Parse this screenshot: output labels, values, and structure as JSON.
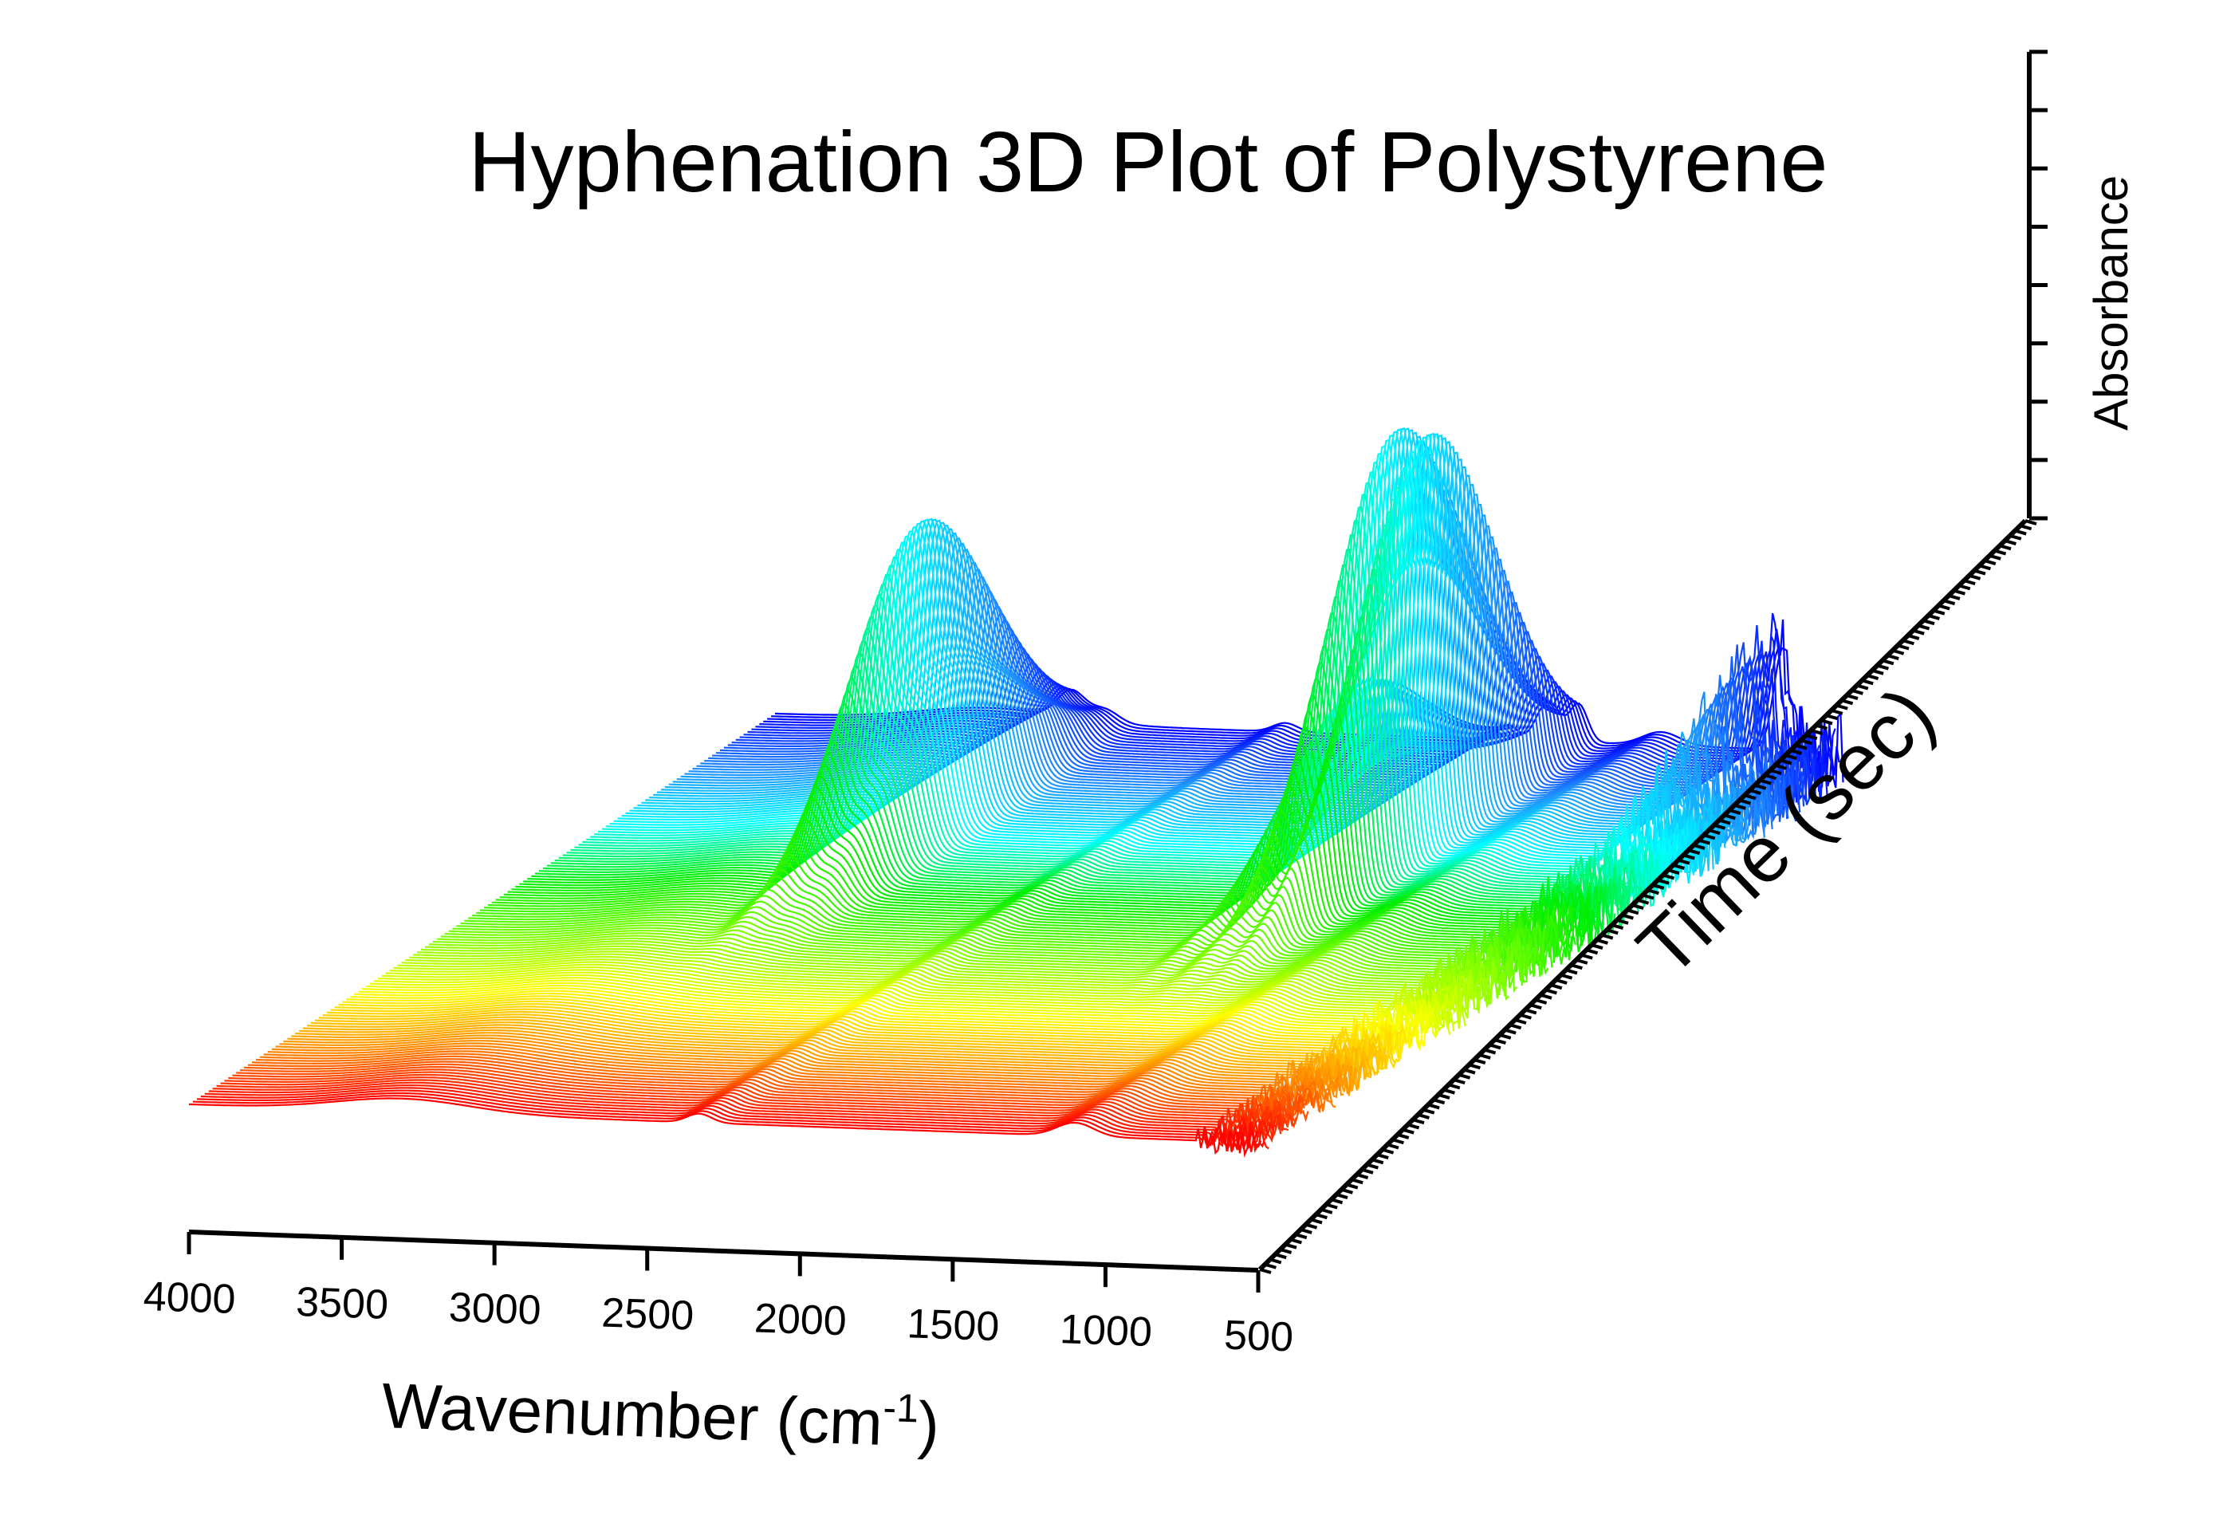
{
  "chart_data": {
    "type": "3d-waterfall",
    "title": "Hyphenation 3D Plot of Polystyrene",
    "x_axis": {
      "label": "Wavenumber (cm",
      "label_superscript": "-1",
      "label_suffix": ")",
      "range": [
        4000,
        500
      ],
      "tick_labels": [
        "4000",
        "3500",
        "3000",
        "2500",
        "2000",
        "1500",
        "1000",
        "500"
      ],
      "tick_values": [
        4000,
        3500,
        3000,
        2500,
        2000,
        1500,
        1000,
        500
      ]
    },
    "y_axis": {
      "label": "Time (sec)"
    },
    "z_axis": {
      "label": "Absorbance",
      "tick_count": 9
    },
    "grid": false,
    "colormap": [
      "#ff0000",
      "#ff8c00",
      "#ffff00",
      "#7fff00",
      "#00ee00",
      "#00ffff",
      "#1e90ff",
      "#0000ff"
    ],
    "spectrum_count": 150,
    "peaks": [
      {
        "wavenumber": 3030,
        "time_fraction": 0.74,
        "relative_height": 0.65
      },
      {
        "wavenumber": 2920,
        "time_fraction": 0.74,
        "relative_height": 0.3
      },
      {
        "wavenumber": 1600,
        "time_fraction": 0.74,
        "relative_height": 0.35
      },
      {
        "wavenumber": 1490,
        "time_fraction": 0.74,
        "relative_height": 0.55
      },
      {
        "wavenumber": 1450,
        "time_fraction": 0.74,
        "relative_height": 0.6
      },
      {
        "wavenumber": 1370,
        "time_fraction": 0.74,
        "relative_height": 0.9
      },
      {
        "wavenumber": 700,
        "time_fraction": 0.95,
        "relative_height": 0.25
      }
    ]
  }
}
